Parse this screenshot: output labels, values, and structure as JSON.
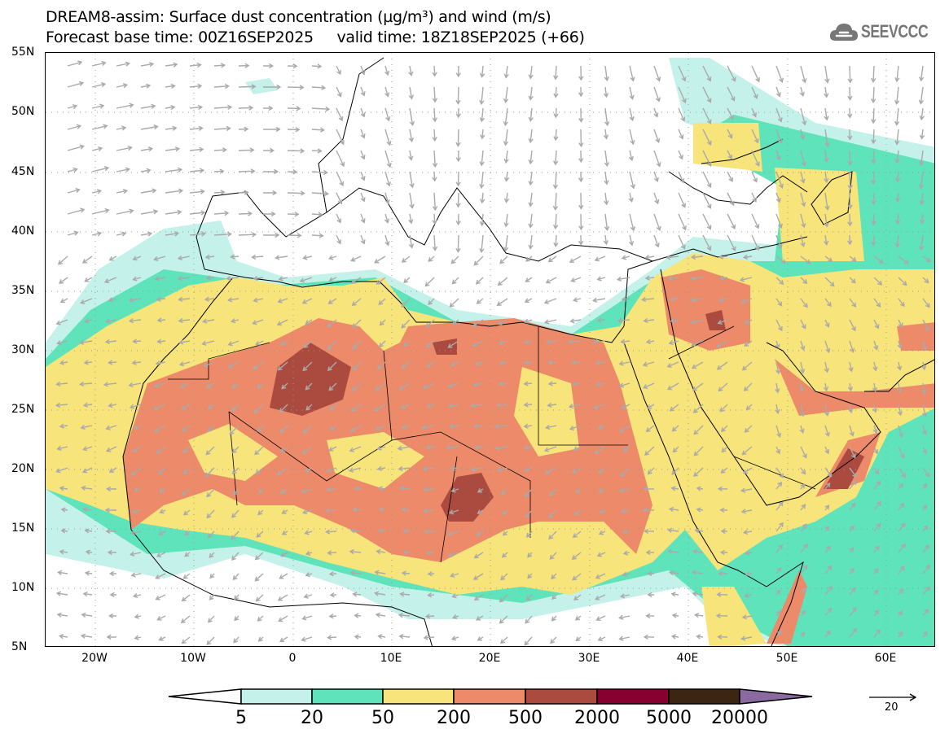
{
  "title": {
    "line1": "DREAM8-assim: Surface dust concentration (µg/m³) and wind (m/s)",
    "line2": "Forecast base time: 00Z16SEP2025     valid time: 18Z18SEP2025 (+66)"
  },
  "logo": {
    "text": "SEEVCCC",
    "icon": "cloud-icon"
  },
  "axes": {
    "lat_labels": [
      "55N",
      "50N",
      "45N",
      "40N",
      "35N",
      "30N",
      "25N",
      "20N",
      "15N",
      "10N",
      "5N"
    ],
    "lon_labels": [
      "20W",
      "10W",
      "0",
      "10E",
      "20E",
      "30E",
      "40E",
      "50E",
      "60E"
    ],
    "lon_range": [
      -25,
      65
    ],
    "lat_range": [
      5,
      55
    ]
  },
  "colorbar": {
    "levels": [
      "5",
      "20",
      "50",
      "200",
      "500",
      "2000",
      "5000",
      "20000"
    ],
    "colors": [
      "#ffffff",
      "#c4f2ea",
      "#5ee3bb",
      "#f7e47a",
      "#ec8a69",
      "#ab4a3e",
      "#870030",
      "#3d2514",
      "#8a6aa0"
    ],
    "units": "µg/m³"
  },
  "wind_legend": {
    "value": "20",
    "units": "m/s"
  }
}
